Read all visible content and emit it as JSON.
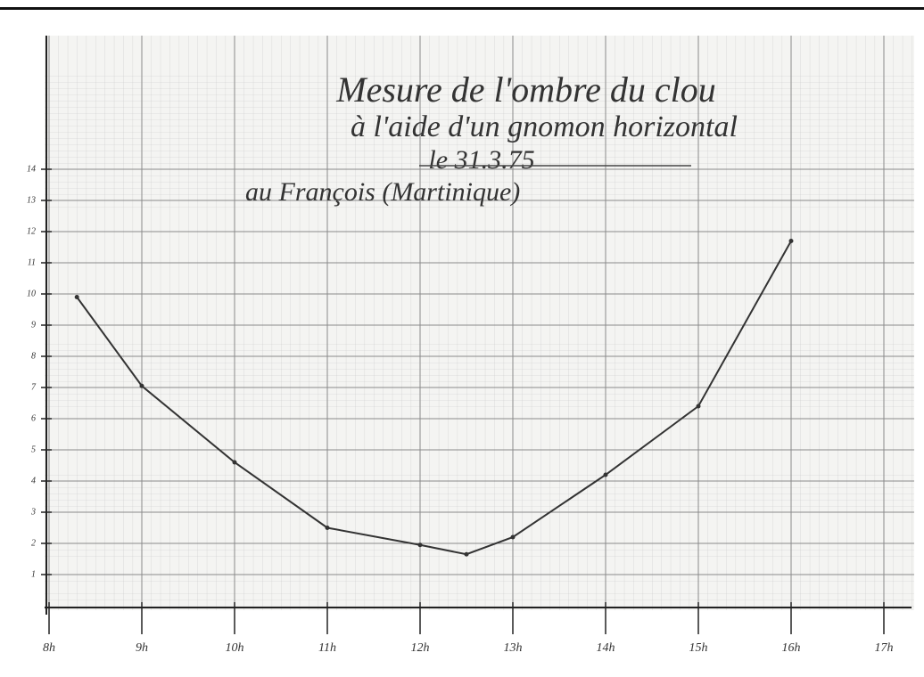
{
  "chart_data": {
    "type": "line",
    "title": "Mesure de l'ombre du clou",
    "subtitle": "à l'aide d'un gnomon horizontal",
    "date": "le 31.3.75",
    "location": "au François (Martinique)",
    "x": [
      8.3,
      9,
      10,
      11,
      12,
      12.5,
      13,
      14,
      15,
      16
    ],
    "series": [
      {
        "color": "#333333",
        "values": [
          9.9,
          7.05,
          4.6,
          2.5,
          1.95,
          1.65,
          2.2,
          4.2,
          6.4,
          11.7
        ]
      }
    ],
    "xlim": [
      8,
      17.3
    ],
    "ylim": [
      0,
      18
    ],
    "xticks": [
      {
        "value": 8,
        "label": "8h"
      },
      {
        "value": 9,
        "label": "9h"
      },
      {
        "value": 10,
        "label": "10h"
      },
      {
        "value": 11,
        "label": "11h"
      },
      {
        "value": 12,
        "label": "12h"
      },
      {
        "value": 13,
        "label": "13h"
      },
      {
        "value": 14,
        "label": "14h"
      },
      {
        "value": 15,
        "label": "15h"
      },
      {
        "value": 16,
        "label": "16h"
      },
      {
        "value": 17,
        "label": "17h"
      }
    ],
    "yticks": [
      1,
      2,
      3,
      4,
      5,
      6,
      7,
      8,
      9,
      10,
      11,
      12,
      13,
      14
    ],
    "grid": true
  }
}
